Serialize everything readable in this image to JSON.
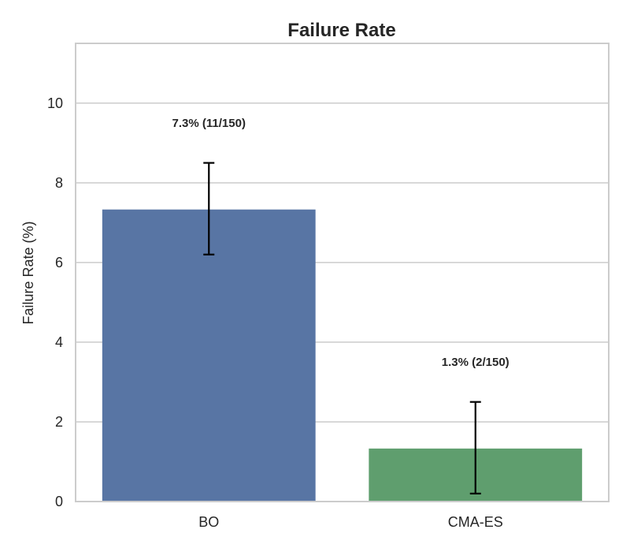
{
  "chart_data": {
    "type": "bar",
    "title": "Failure Rate",
    "xlabel": "",
    "ylabel": "Failure Rate (%)",
    "categories": [
      "BO",
      "CMA-ES"
    ],
    "values": [
      7.33,
      1.33
    ],
    "error_bars": [
      {
        "low": 6.2,
        "high": 8.5
      },
      {
        "low": 0.2,
        "high": 2.5
      }
    ],
    "data_labels": [
      "7.3% (11/150)",
      "1.3% (2/150)"
    ],
    "colors": [
      "#5875a4",
      "#5f9e6e"
    ],
    "ylim": [
      0,
      11.5
    ],
    "yticks": [
      0,
      2,
      4,
      6,
      8,
      10
    ],
    "grid": true,
    "legend": "none"
  }
}
